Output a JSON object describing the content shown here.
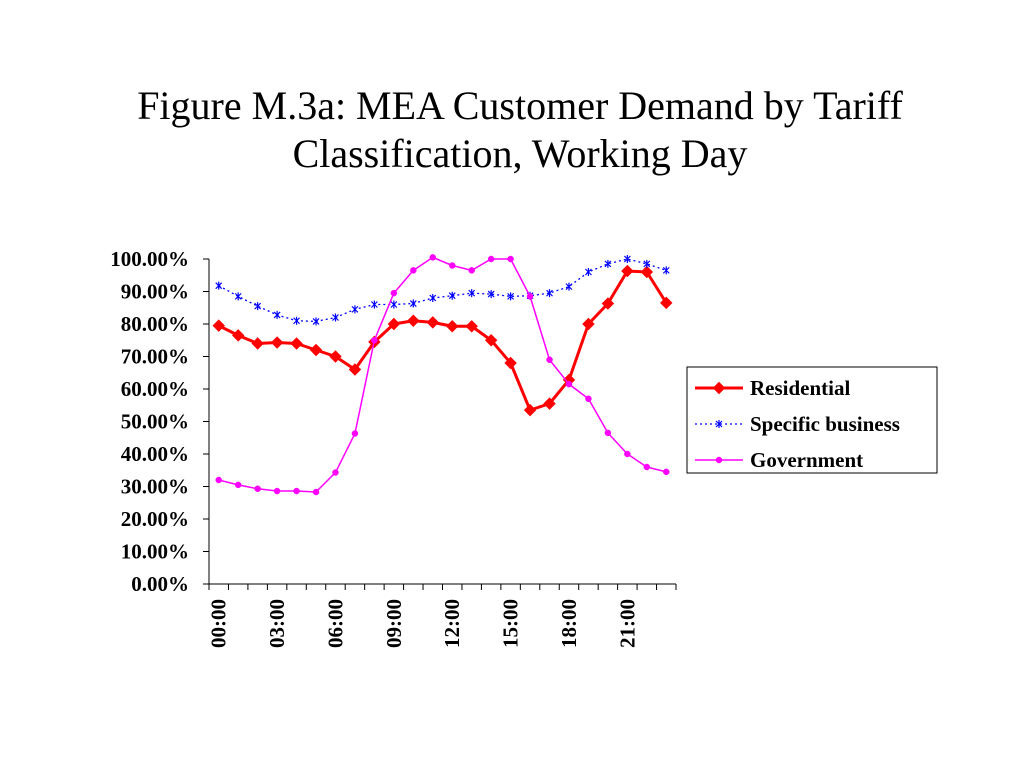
{
  "slide": {
    "title_line1": "Figure M.3a: MEA Customer Demand by Tariff",
    "title_line2": "Classification, Working Day"
  },
  "chart_data": {
    "type": "line",
    "title": "Figure M.3a: MEA Customer Demand by Tariff Classification, Working Day",
    "xlabel": "",
    "ylabel": "",
    "x": [
      0,
      1,
      2,
      3,
      4,
      5,
      6,
      7,
      8,
      9,
      10,
      11,
      12,
      13,
      14,
      15,
      16,
      17,
      18,
      19,
      20,
      21,
      22,
      23
    ],
    "x_tick_labels": [
      {
        "x": 0,
        "label": "00:00"
      },
      {
        "x": 3,
        "label": "03:00"
      },
      {
        "x": 6,
        "label": "06:00"
      },
      {
        "x": 9,
        "label": "09:00"
      },
      {
        "x": 12,
        "label": "12:00"
      },
      {
        "x": 15,
        "label": "15:00"
      },
      {
        "x": 18,
        "label": "18:00"
      },
      {
        "x": 21,
        "label": "21:00"
      }
    ],
    "y_tick_labels": [
      "0.00%",
      "10.00%",
      "20.00%",
      "30.00%",
      "40.00%",
      "50.00%",
      "60.00%",
      "70.00%",
      "80.00%",
      "90.00%",
      "100.00%"
    ],
    "ylim": [
      0,
      100
    ],
    "grid": false,
    "legend_position": "right",
    "series": [
      {
        "name": "Residential",
        "color": "#ff0000",
        "line_style": "solid",
        "marker": "diamond",
        "values": [
          79.5,
          76.5,
          74,
          74.3,
          74,
          72,
          70,
          66,
          74.5,
          80,
          81,
          80.5,
          79.3,
          79.3,
          75,
          68,
          53.5,
          55.5,
          62.8,
          80,
          86.3,
          96.3,
          96,
          86.5
        ]
      },
      {
        "name": "Specific business",
        "color": "#0000ff",
        "line_style": "dotted",
        "marker": "asterisk",
        "values": [
          91.8,
          88.5,
          85.5,
          82.8,
          81,
          80.8,
          82,
          84.5,
          86,
          86,
          86.3,
          88,
          88.7,
          89.5,
          89.2,
          88.5,
          88.7,
          89.5,
          91.5,
          96,
          98.5,
          100,
          98.5,
          96.5
        ]
      },
      {
        "name": "Government",
        "color": "#ff00ff",
        "line_style": "solid",
        "marker": "circle",
        "values": [
          32,
          30.5,
          29.3,
          28.6,
          28.6,
          28.3,
          34.3,
          46.3,
          75,
          89.5,
          96.5,
          100.5,
          98,
          96.5,
          100,
          100,
          88.5,
          69,
          61.5,
          57,
          46.5,
          40,
          36,
          34.5
        ]
      }
    ]
  }
}
